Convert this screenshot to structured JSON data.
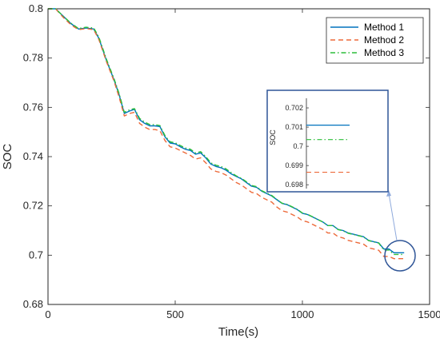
{
  "chart_data": [
    {
      "type": "line",
      "title": "",
      "xlabel": "Time(s)",
      "ylabel": "SOC",
      "xlim": [
        0,
        1500
      ],
      "ylim": [
        0.68,
        0.8
      ],
      "xticks": [
        0,
        500,
        1000,
        1500
      ],
      "yticks": [
        0.68,
        0.7,
        0.72,
        0.74,
        0.76,
        0.78,
        0.8
      ],
      "xtick_labels": [
        "0",
        "500",
        "1000",
        "1500"
      ],
      "ytick_labels": [
        "0.68",
        "0.7",
        "0.72",
        "0.74",
        "0.76",
        "0.78",
        "0.8"
      ],
      "legend_position": "top-right",
      "grid": false,
      "series": [
        {
          "name": "Method 1",
          "color": "#0072BD",
          "style": "solid",
          "x": [
            0,
            30,
            60,
            90,
            120,
            150,
            180,
            200,
            230,
            260,
            280,
            300,
            320,
            340,
            360,
            380,
            400,
            420,
            440,
            460,
            480,
            500,
            520,
            540,
            560,
            580,
            600,
            620,
            640,
            660,
            680,
            700,
            720,
            740,
            760,
            780,
            800,
            820,
            840,
            860,
            880,
            900,
            920,
            940,
            960,
            980,
            1000,
            1020,
            1040,
            1060,
            1080,
            1100,
            1120,
            1140,
            1160,
            1180,
            1200,
            1220,
            1240,
            1260,
            1280,
            1300,
            1320,
            1340,
            1360,
            1380,
            1400
          ],
          "y": [
            0.8,
            0.8,
            0.797,
            0.794,
            0.7918,
            0.7922,
            0.7918,
            0.788,
            0.779,
            0.771,
            0.765,
            0.7575,
            0.7585,
            0.7592,
            0.755,
            0.7535,
            0.7525,
            0.7525,
            0.7522,
            0.748,
            0.7455,
            0.7452,
            0.744,
            0.743,
            0.7425,
            0.741,
            0.7415,
            0.7395,
            0.737,
            0.736,
            0.7355,
            0.7345,
            0.733,
            0.732,
            0.731,
            0.7295,
            0.728,
            0.7275,
            0.726,
            0.725,
            0.724,
            0.7225,
            0.721,
            0.7205,
            0.7195,
            0.7185,
            0.717,
            0.7165,
            0.7155,
            0.7145,
            0.7135,
            0.712,
            0.712,
            0.7105,
            0.71,
            0.709,
            0.7085,
            0.708,
            0.7075,
            0.706,
            0.7055,
            0.705,
            0.7025,
            0.7025,
            0.701,
            0.701,
            0.701
          ]
        },
        {
          "name": "Method 2",
          "color": "#ED6A3A",
          "style": "dashed",
          "x": [
            0,
            30,
            60,
            90,
            120,
            150,
            180,
            200,
            230,
            260,
            280,
            300,
            320,
            340,
            360,
            380,
            400,
            420,
            440,
            460,
            480,
            500,
            520,
            540,
            560,
            580,
            600,
            620,
            640,
            660,
            680,
            700,
            720,
            740,
            760,
            780,
            800,
            820,
            840,
            860,
            880,
            900,
            920,
            940,
            960,
            980,
            1000,
            1020,
            1040,
            1060,
            1080,
            1100,
            1120,
            1140,
            1160,
            1180,
            1200,
            1220,
            1240,
            1260,
            1280,
            1300,
            1320,
            1340,
            1360,
            1380,
            1400
          ],
          "y": [
            0.8,
            0.8,
            0.7965,
            0.7935,
            0.7915,
            0.792,
            0.7915,
            0.7875,
            0.7785,
            0.7705,
            0.764,
            0.7565,
            0.7575,
            0.758,
            0.7535,
            0.752,
            0.751,
            0.751,
            0.7505,
            0.7465,
            0.744,
            0.7435,
            0.7425,
            0.7415,
            0.7405,
            0.739,
            0.7395,
            0.7375,
            0.735,
            0.734,
            0.7335,
            0.7325,
            0.731,
            0.7295,
            0.7285,
            0.727,
            0.7255,
            0.725,
            0.7235,
            0.7225,
            0.7215,
            0.7195,
            0.718,
            0.7175,
            0.7165,
            0.7155,
            0.714,
            0.7135,
            0.7125,
            0.7115,
            0.7105,
            0.709,
            0.709,
            0.7075,
            0.707,
            0.706,
            0.7055,
            0.705,
            0.7045,
            0.703,
            0.7025,
            0.702,
            0.6995,
            0.6995,
            0.6986,
            0.6986,
            0.6986
          ]
        },
        {
          "name": "Method 3",
          "color": "#2DBE3A",
          "style": "dashdot",
          "x": [
            0,
            30,
            60,
            90,
            120,
            150,
            180,
            200,
            230,
            260,
            280,
            300,
            320,
            340,
            360,
            380,
            400,
            420,
            440,
            460,
            480,
            500,
            520,
            540,
            560,
            580,
            600,
            620,
            640,
            660,
            680,
            700,
            720,
            740,
            760,
            780,
            800,
            820,
            840,
            860,
            880,
            900,
            920,
            940,
            960,
            980,
            1000,
            1020,
            1040,
            1060,
            1080,
            1100,
            1120,
            1140,
            1160,
            1180,
            1200,
            1220,
            1240,
            1260,
            1280,
            1300,
            1320,
            1340,
            1360,
            1380,
            1400
          ],
          "y": [
            0.8,
            0.8,
            0.797,
            0.7942,
            0.792,
            0.7925,
            0.7922,
            0.7885,
            0.7795,
            0.7715,
            0.7655,
            0.758,
            0.759,
            0.7595,
            0.7555,
            0.754,
            0.753,
            0.753,
            0.7526,
            0.7485,
            0.746,
            0.7456,
            0.7445,
            0.7435,
            0.743,
            0.7415,
            0.742,
            0.74,
            0.7375,
            0.7365,
            0.736,
            0.735,
            0.7335,
            0.7322,
            0.7312,
            0.7298,
            0.7283,
            0.7278,
            0.7262,
            0.7252,
            0.7242,
            0.7226,
            0.7211,
            0.7206,
            0.7196,
            0.7186,
            0.7171,
            0.7166,
            0.7156,
            0.7145,
            0.7135,
            0.712,
            0.712,
            0.7104,
            0.7099,
            0.7089,
            0.7084,
            0.7079,
            0.7074,
            0.7059,
            0.7054,
            0.7049,
            0.7021,
            0.7021,
            0.7003,
            0.7003,
            0.7003
          ]
        }
      ]
    },
    {
      "type": "line",
      "title": "",
      "xlabel": "",
      "ylabel": "SOC",
      "ylim": [
        0.6978,
        0.7025
      ],
      "yticks": [
        0.698,
        0.699,
        0.7,
        0.701,
        0.702
      ],
      "ytick_labels": [
        "0.698",
        "0.699",
        "0.7",
        "0.701",
        "0.702"
      ],
      "grid": false,
      "series": [
        {
          "name": "Method 1",
          "color": "#0072BD",
          "style": "solid",
          "x": [
            1380,
            1420
          ],
          "y": [
            0.7011,
            0.7011
          ]
        },
        {
          "name": "Method 2",
          "color": "#ED6A3A",
          "style": "dashed",
          "x": [
            1380,
            1420
          ],
          "y": [
            0.69865,
            0.69865
          ]
        },
        {
          "name": "Method 3",
          "color": "#2DBE3A",
          "style": "dashdot",
          "x": [
            1380,
            1420
          ],
          "y": [
            0.70035,
            0.70035
          ]
        }
      ]
    }
  ]
}
